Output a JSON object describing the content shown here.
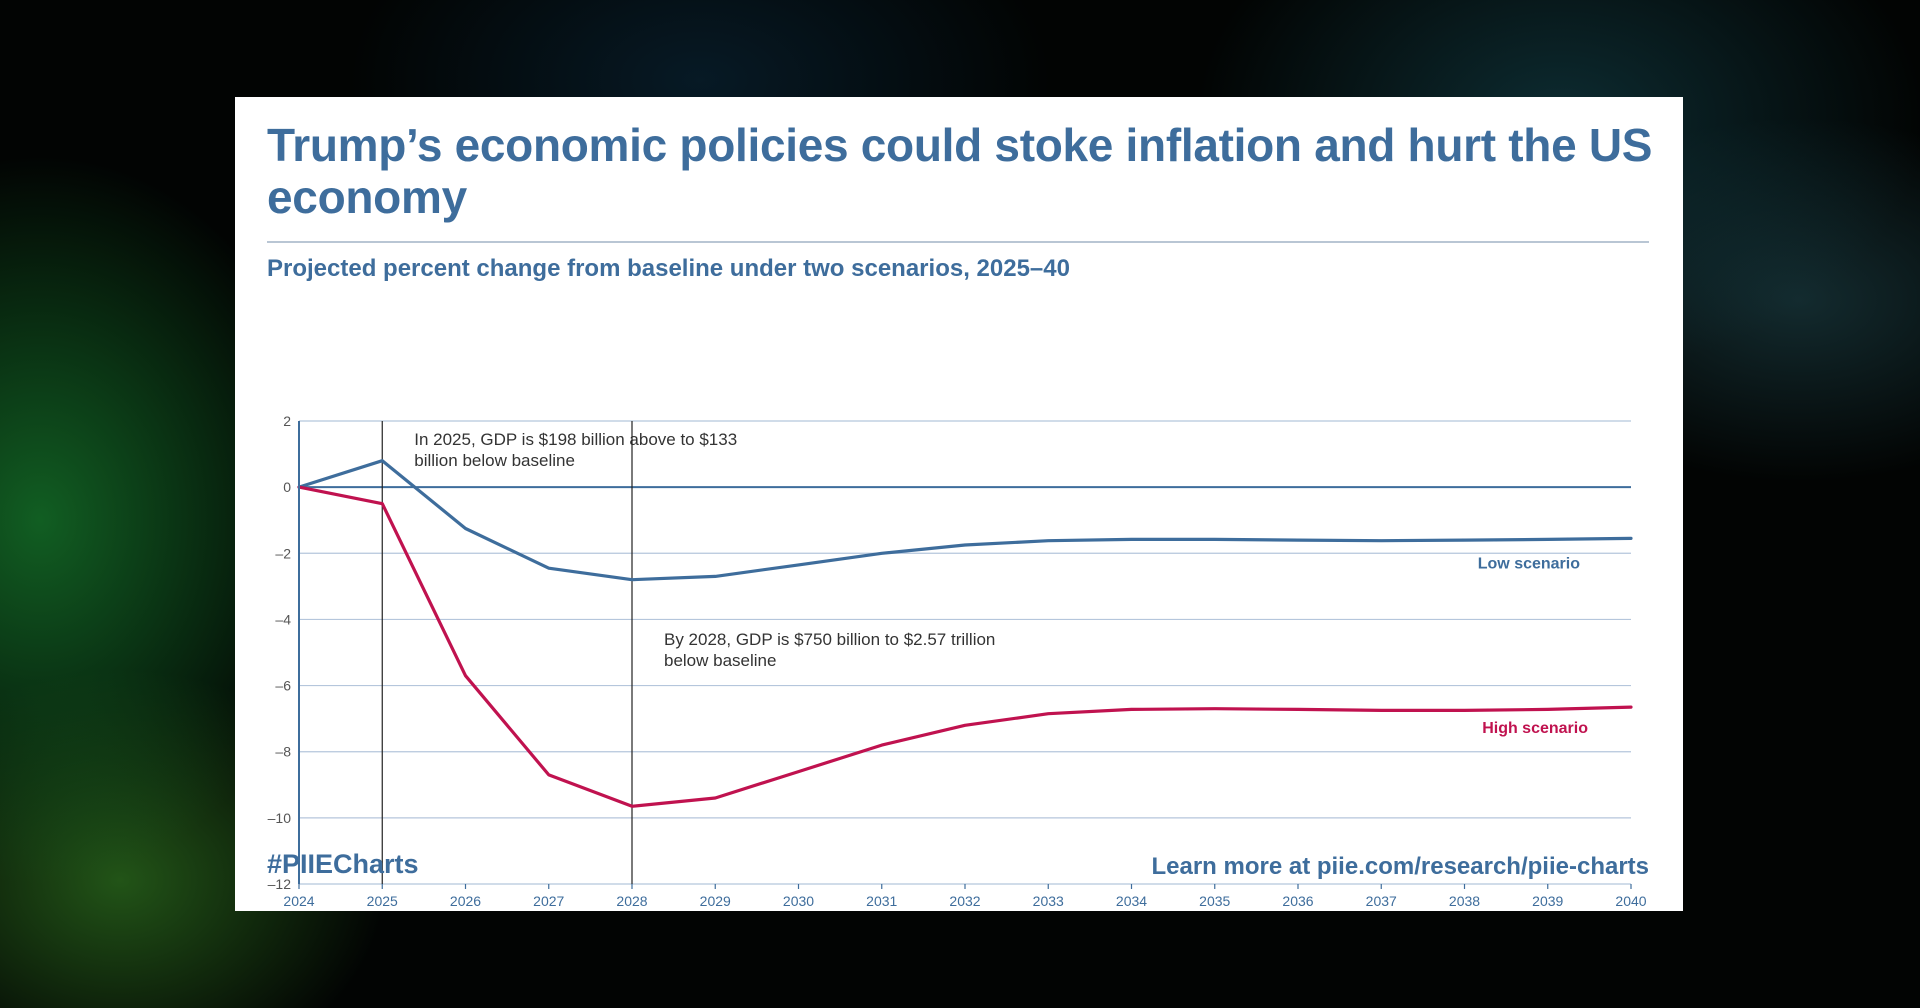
{
  "card": {
    "title": "Trump’s economic policies could stoke inflation and hurt the US economy",
    "subtitle": "Projected percent change from baseline under two scenarios, 2025–40",
    "hashtag": "#PIIECharts",
    "link_text": "Learn more at piie.com/research/piie-charts"
  },
  "colors": {
    "brand_blue": "#3e6d9c",
    "high_red": "#c0124f",
    "grid": "#b5c6dc"
  },
  "chart_data": {
    "type": "line",
    "x": [
      2024,
      2025,
      2026,
      2027,
      2028,
      2029,
      2030,
      2031,
      2032,
      2033,
      2034,
      2035,
      2036,
      2037,
      2038,
      2039,
      2040
    ],
    "xlabels": [
      "2024",
      "2025",
      "2026",
      "2027",
      "2028",
      "2029",
      "2030",
      "2031",
      "2032",
      "2033",
      "2034",
      "2035",
      "2036",
      "2037",
      "2038",
      "2039",
      "2040"
    ],
    "ylim": [
      -12,
      2
    ],
    "yticks": [
      2,
      0,
      -2,
      -4,
      -6,
      -8,
      -10,
      -12
    ],
    "ytick_labels": [
      "2",
      "0",
      "–2",
      "–4",
      "–6",
      "–8",
      "–10",
      "–12"
    ],
    "grid": true,
    "series": [
      {
        "name": "Low scenario",
        "color": "#3e6d9c",
        "values": [
          0,
          0.8,
          -1.25,
          -2.45,
          -2.8,
          -2.7,
          -2.35,
          -2.0,
          -1.75,
          -1.62,
          -1.58,
          -1.58,
          -1.6,
          -1.62,
          -1.6,
          -1.58,
          -1.55
        ]
      },
      {
        "name": "High scenario",
        "color": "#c0124f",
        "values": [
          0,
          -0.5,
          -5.7,
          -8.7,
          -9.65,
          -9.4,
          -8.6,
          -7.8,
          -7.2,
          -6.85,
          -6.72,
          -6.7,
          -6.72,
          -6.75,
          -6.75,
          -6.72,
          -6.65
        ]
      }
    ],
    "annotations": [
      {
        "x": 2025,
        "lines": [
          "In 2025, GDP is $198 billion above to $133",
          "billion below baseline"
        ]
      },
      {
        "x": 2028,
        "lines": [
          "By 2028, GDP is $750 billion to $2.57 trillion",
          "below baseline"
        ]
      }
    ]
  }
}
